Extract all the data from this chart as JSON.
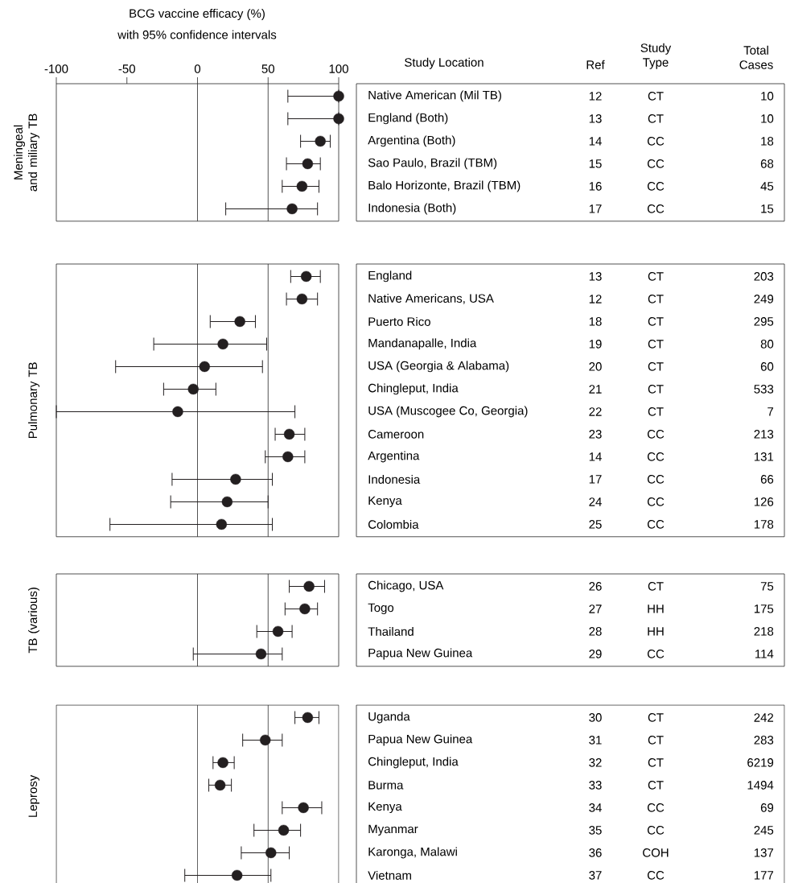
{
  "chart_data": [
    {
      "type": "scatter",
      "orientation": "horizontal",
      "title": "BCG vaccine efficacy (%)",
      "subtitle": "with 95% confidence intervals",
      "ylabel": "Meningeal and miliary TB",
      "color": "#231f20",
      "marker": "circle",
      "categories": [
        "Native American (Mil TB)",
        "England (Both)",
        "Argentina (Both)",
        "Sao Paulo, Brazil (TBM)",
        "Balo Horizonte, Brazil (TBM)",
        "Indonesia (Both)"
      ],
      "values": [
        100,
        100,
        87,
        78,
        74,
        67
      ],
      "errors": [
        [
          64,
          100
        ],
        [
          64,
          100
        ],
        [
          73,
          94
        ],
        [
          63,
          87
        ],
        [
          60,
          86
        ],
        [
          20,
          85
        ]
      ],
      "xlim": [
        -100,
        100
      ],
      "xticks": [
        -100,
        -50,
        0,
        50,
        100
      ],
      "ref_lines": [
        {
          "axis": "x",
          "value": 0
        },
        {
          "axis": "x",
          "value": 50
        }
      ],
      "annotations": [
        "Study Location",
        "Ref",
        "Study Type",
        "Total Cases",
        "12",
        "CT",
        "10",
        "13",
        "CT",
        "10",
        "14",
        "CC",
        "18",
        "15",
        "CC",
        "68",
        "16",
        "CC",
        "45",
        "17",
        "CC",
        "15"
      ]
    },
    {
      "type": "scatter",
      "orientation": "horizontal",
      "ylabel": "Pulmonary TB",
      "color": "#231f20",
      "marker": "circle",
      "tick_labels": "y",
      "categories": [
        "England",
        "Native Americans, USA",
        "Puerto Rico",
        "Mandanapalle, India",
        "USA (Georgia & Alabama)",
        "Chingleput, India",
        "USA (Muscogee Co, Georgia)",
        "Cameroon",
        "Argentina",
        "Indonesia",
        "Kenya",
        "Colombia"
      ],
      "values": [
        77,
        74,
        30,
        18,
        5,
        -3,
        -14,
        65,
        64,
        27,
        21,
        17
      ],
      "errors": [
        [
          66,
          87
        ],
        [
          63,
          85
        ],
        [
          9,
          41
        ],
        [
          -31,
          49
        ],
        [
          -58,
          46
        ],
        [
          -24,
          13
        ],
        [
          -100,
          69
        ],
        [
          55,
          76
        ],
        [
          48,
          76
        ],
        [
          -18,
          53
        ],
        [
          -19,
          50
        ],
        [
          -62,
          53
        ]
      ],
      "xlim": [
        -100,
        100
      ],
      "ref_lines": [
        {
          "axis": "x",
          "value": 0
        },
        {
          "axis": "x",
          "value": 50
        }
      ],
      "annotations": [
        "13",
        "CT",
        "203",
        "12",
        "CT",
        "249",
        "18",
        "CT",
        "295",
        "19",
        "CT",
        "80",
        "20",
        "CT",
        "60",
        "21",
        "CT",
        "533",
        "22",
        "CT",
        "7",
        "23",
        "CC",
        "213",
        "14",
        "CC",
        "131",
        "17",
        "CC",
        "66",
        "24",
        "CC",
        "126",
        "25",
        "CC",
        "178"
      ]
    },
    {
      "type": "scatter",
      "orientation": "horizontal",
      "ylabel": "TB (various)",
      "color": "#231f20",
      "marker": "circle",
      "tick_labels": "y",
      "categories": [
        "Chicago, USA",
        "Togo",
        "Thailand",
        "Papua New Guinea"
      ],
      "values": [
        79,
        76,
        57,
        45
      ],
      "errors": [
        [
          65,
          90
        ],
        [
          62,
          85
        ],
        [
          42,
          67
        ],
        [
          -3,
          60
        ]
      ],
      "xlim": [
        -100,
        100
      ],
      "ref_lines": [
        {
          "axis": "x",
          "value": 0
        },
        {
          "axis": "x",
          "value": 50
        }
      ],
      "annotations": [
        "26",
        "CT",
        "75",
        "27",
        "HH",
        "175",
        "28",
        "HH",
        "218",
        "29",
        "CC",
        "114"
      ]
    },
    {
      "type": "scatter",
      "orientation": "horizontal",
      "ylabel": "Leprosy",
      "color": "#231f20",
      "marker": "circle",
      "tick_labels": "y",
      "categories": [
        "Uganda",
        "Papua New Guinea",
        "Chingleput, India",
        "Burma",
        "Kenya",
        "Myanmar",
        "Karonga, Malawi",
        "Vietnam"
      ],
      "values": [
        78,
        48,
        18,
        16,
        75,
        61,
        52,
        28
      ],
      "errors": [
        [
          69,
          86
        ],
        [
          32,
          60
        ],
        [
          11,
          26
        ],
        [
          8,
          24
        ],
        [
          60,
          88
        ],
        [
          40,
          73
        ],
        [
          31,
          65
        ],
        [
          -9,
          52
        ]
      ],
      "xlim": [
        -100,
        100
      ],
      "ref_lines": [
        {
          "axis": "x",
          "value": 0
        },
        {
          "axis": "x",
          "value": 50
        }
      ],
      "annotations": [
        "30",
        "CT",
        "242",
        "31",
        "CT",
        "283",
        "32",
        "CT",
        "6219",
        "33",
        "CT",
        "1494",
        "34",
        "CC",
        "69",
        "35",
        "CC",
        "245",
        "36",
        "COH",
        "137",
        "37",
        "CC",
        "177"
      ]
    }
  ]
}
